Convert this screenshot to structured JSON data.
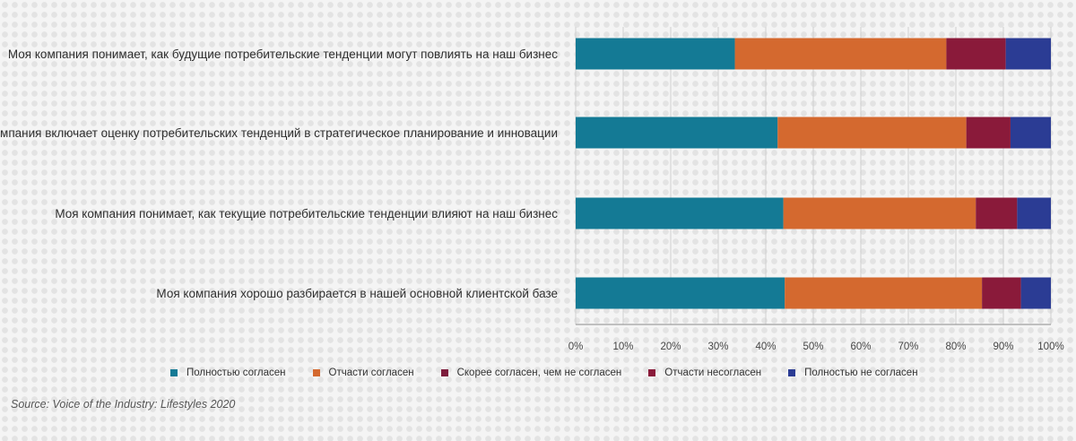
{
  "chart_data": {
    "type": "bar",
    "orientation": "horizontal",
    "stacked": true,
    "categories": [
      "Моя компания понимает, как будущие потребительские тенденции могут повлиять на наш бизнес",
      "Моя компания включает оценку потребительских тенденций в стратегическое планирование и инновации",
      "Моя компания понимает, как текущие потребительские тенденции влияют на наш бизнес",
      "Моя компания хорошо разбирается в нашей основной клиентской базе"
    ],
    "series": [
      {
        "name": "Полностью согласен",
        "color": "#147a95",
        "values": [
          33.5,
          42.5,
          43.7,
          44.0
        ]
      },
      {
        "name": "Отчасти согласен",
        "color": "#d4692f",
        "values": [
          44.5,
          39.7,
          40.5,
          41.5
        ]
      },
      {
        "name": "Скорее согласен, чем не согласен",
        "color": "#7d1c3c",
        "values": [
          0,
          0,
          0,
          0
        ]
      },
      {
        "name": "Отчасти несогласен",
        "color": "#8a1a3a",
        "values": [
          12.5,
          9.3,
          8.7,
          8.2
        ]
      },
      {
        "name": "Полностью не согласен",
        "color": "#2b3c94",
        "values": [
          9.5,
          8.5,
          7.1,
          6.3
        ]
      }
    ],
    "xlim": [
      0,
      100
    ],
    "xticks": [
      "0%",
      "10%",
      "20%",
      "30%",
      "40%",
      "50%",
      "60%",
      "70%",
      "80%",
      "90%",
      "100%"
    ],
    "grid": true,
    "legend_position": "bottom"
  },
  "source": "Source: Voice of the Industry: Lifestyles 2020"
}
